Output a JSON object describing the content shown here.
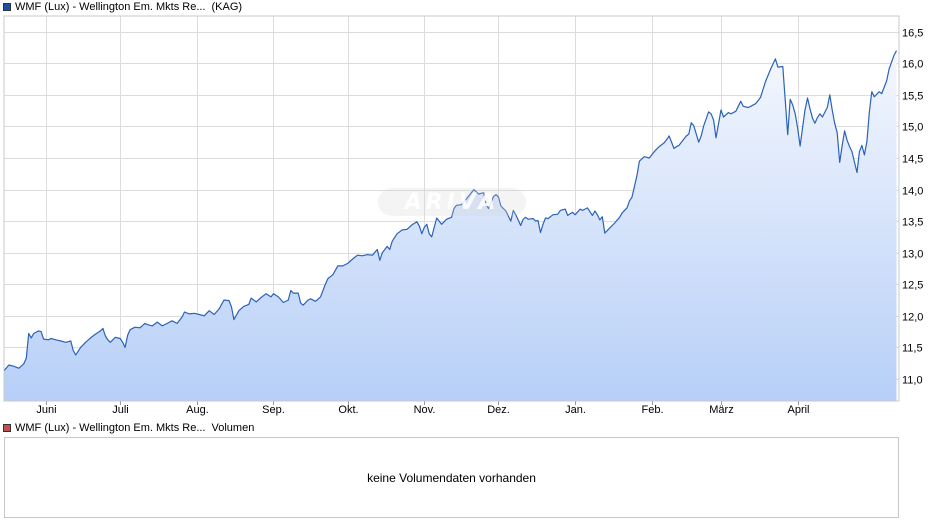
{
  "legend": {
    "price_name": "WMF (Lux) - Wellington Em. Mkts Re...",
    "price_suffix": "(KAG)",
    "price_color": "#1f4fa0",
    "volume_name": "WMF (Lux) - Wellington Em. Mkts Re...",
    "volume_suffix": "Volumen",
    "volume_color": "#c0504d"
  },
  "volume_panel": {
    "message": "keine Volumendaten vorhanden"
  },
  "watermark": {
    "text": "ARIVA"
  },
  "chart_data": {
    "type": "area",
    "line_color": "#2a62b8",
    "fill_color": "#b7cff7",
    "grid": true,
    "ylim": [
      10.65,
      16.75
    ],
    "y_ticks": [
      "11,0",
      "11,5",
      "12,0",
      "12,5",
      "13,0",
      "13,5",
      "14,0",
      "14,5",
      "15,0",
      "15,5",
      "16,0",
      "16,5"
    ],
    "y_tick_values": [
      11.0,
      11.5,
      12.0,
      12.5,
      13.0,
      13.5,
      14.0,
      14.5,
      15.0,
      15.5,
      16.0,
      16.5
    ],
    "x_month_labels": [
      "Juni",
      "Juli",
      "Aug.",
      "Sep.",
      "Okt.",
      "Nov.",
      "Dez.",
      "Jan.",
      "Feb.",
      "März",
      "April"
    ],
    "x_month_days": [
      17,
      47,
      78,
      109,
      139,
      170,
      200,
      231,
      262,
      290,
      321
    ],
    "x_range_days": [
      0,
      362
    ],
    "series": [
      {
        "points": [
          [
            0,
            11.13
          ],
          [
            2,
            11.22
          ],
          [
            4,
            11.2
          ],
          [
            6,
            11.17
          ],
          [
            8,
            11.24
          ],
          [
            9,
            11.33
          ],
          [
            10,
            11.72
          ],
          [
            11,
            11.65
          ],
          [
            12,
            11.72
          ],
          [
            14,
            11.76
          ],
          [
            15,
            11.75
          ],
          [
            16,
            11.63
          ],
          [
            18,
            11.62
          ],
          [
            19,
            11.64
          ],
          [
            21,
            11.62
          ],
          [
            23,
            11.6
          ],
          [
            25,
            11.58
          ],
          [
            27,
            11.6
          ],
          [
            28,
            11.45
          ],
          [
            29,
            11.38
          ],
          [
            31,
            11.5
          ],
          [
            33,
            11.58
          ],
          [
            35,
            11.65
          ],
          [
            37,
            11.71
          ],
          [
            39,
            11.76
          ],
          [
            40,
            11.8
          ],
          [
            41,
            11.68
          ],
          [
            42,
            11.62
          ],
          [
            43,
            11.58
          ],
          [
            45,
            11.66
          ],
          [
            47,
            11.64
          ],
          [
            48,
            11.58
          ],
          [
            49,
            11.5
          ],
          [
            50,
            11.69
          ],
          [
            51,
            11.78
          ],
          [
            53,
            11.82
          ],
          [
            55,
            11.81
          ],
          [
            57,
            11.88
          ],
          [
            58,
            11.86
          ],
          [
            60,
            11.84
          ],
          [
            62,
            11.9
          ],
          [
            64,
            11.84
          ],
          [
            66,
            11.88
          ],
          [
            68,
            11.92
          ],
          [
            70,
            11.88
          ],
          [
            72,
            11.98
          ],
          [
            73,
            12.06
          ],
          [
            75,
            12.03
          ],
          [
            77,
            12.04
          ],
          [
            79,
            12.02
          ],
          [
            81,
            12.0
          ],
          [
            83,
            12.08
          ],
          [
            85,
            12.02
          ],
          [
            87,
            12.11
          ],
          [
            89,
            12.25
          ],
          [
            91,
            12.24
          ],
          [
            92,
            12.14
          ],
          [
            93,
            11.94
          ],
          [
            95,
            12.08
          ],
          [
            97,
            12.15
          ],
          [
            99,
            12.18
          ],
          [
            100,
            12.28
          ],
          [
            102,
            12.22
          ],
          [
            104,
            12.29
          ],
          [
            106,
            12.35
          ],
          [
            108,
            12.3
          ],
          [
            109,
            12.35
          ],
          [
            111,
            12.3
          ],
          [
            113,
            12.21
          ],
          [
            115,
            12.25
          ],
          [
            116,
            12.4
          ],
          [
            117,
            12.36
          ],
          [
            119,
            12.36
          ],
          [
            120,
            12.2
          ],
          [
            121,
            12.17
          ],
          [
            123,
            12.25
          ],
          [
            124,
            12.27
          ],
          [
            126,
            12.23
          ],
          [
            128,
            12.3
          ],
          [
            130,
            12.5
          ],
          [
            131,
            12.59
          ],
          [
            133,
            12.65
          ],
          [
            135,
            12.79
          ],
          [
            137,
            12.79
          ],
          [
            139,
            12.83
          ],
          [
            141,
            12.9
          ],
          [
            143,
            12.96
          ],
          [
            145,
            12.95
          ],
          [
            147,
            12.97
          ],
          [
            149,
            12.96
          ],
          [
            151,
            13.05
          ],
          [
            152,
            12.88
          ],
          [
            153,
            13.0
          ],
          [
            155,
            13.1
          ],
          [
            156,
            13.05
          ],
          [
            157,
            13.18
          ],
          [
            159,
            13.3
          ],
          [
            161,
            13.36
          ],
          [
            163,
            13.37
          ],
          [
            165,
            13.44
          ],
          [
            167,
            13.49
          ],
          [
            168,
            13.42
          ],
          [
            169,
            13.3
          ],
          [
            170,
            13.4
          ],
          [
            171,
            13.45
          ],
          [
            172,
            13.3
          ],
          [
            173,
            13.25
          ],
          [
            175,
            13.55
          ],
          [
            177,
            13.45
          ],
          [
            179,
            13.53
          ],
          [
            181,
            13.56
          ],
          [
            182,
            13.7
          ],
          [
            183,
            13.75
          ],
          [
            185,
            13.76
          ],
          [
            187,
            13.85
          ],
          [
            188,
            13.9
          ],
          [
            190,
            14.0
          ],
          [
            192,
            13.93
          ],
          [
            194,
            13.95
          ],
          [
            195,
            13.76
          ],
          [
            196,
            13.7
          ],
          [
            198,
            13.89
          ],
          [
            199,
            13.92
          ],
          [
            200,
            13.88
          ],
          [
            201,
            13.74
          ],
          [
            203,
            13.66
          ],
          [
            205,
            13.5
          ],
          [
            206,
            13.67
          ],
          [
            207,
            13.6
          ],
          [
            209,
            13.43
          ],
          [
            210,
            13.53
          ],
          [
            211,
            13.56
          ],
          [
            212,
            13.53
          ],
          [
            214,
            13.54
          ],
          [
            215,
            13.5
          ],
          [
            216,
            13.51
          ],
          [
            217,
            13.32
          ],
          [
            218,
            13.45
          ],
          [
            219,
            13.55
          ],
          [
            220,
            13.54
          ],
          [
            222,
            13.6
          ],
          [
            224,
            13.61
          ],
          [
            225,
            13.67
          ],
          [
            227,
            13.69
          ],
          [
            228,
            13.59
          ],
          [
            230,
            13.64
          ],
          [
            231,
            13.6
          ],
          [
            233,
            13.69
          ],
          [
            234,
            13.67
          ],
          [
            236,
            13.71
          ],
          [
            238,
            13.59
          ],
          [
            239,
            13.66
          ],
          [
            240,
            13.6
          ],
          [
            241,
            13.52
          ],
          [
            242,
            13.57
          ],
          [
            243,
            13.31
          ],
          [
            245,
            13.39
          ],
          [
            247,
            13.47
          ],
          [
            249,
            13.56
          ],
          [
            250,
            13.63
          ],
          [
            252,
            13.71
          ],
          [
            253,
            13.82
          ],
          [
            254,
            13.88
          ],
          [
            256,
            14.22
          ],
          [
            257,
            14.45
          ],
          [
            259,
            14.52
          ],
          [
            261,
            14.5
          ],
          [
            263,
            14.6
          ],
          [
            265,
            14.68
          ],
          [
            267,
            14.74
          ],
          [
            268,
            14.79
          ],
          [
            269,
            14.85
          ],
          [
            271,
            14.65
          ],
          [
            272,
            14.68
          ],
          [
            273,
            14.7
          ],
          [
            274,
            14.75
          ],
          [
            276,
            14.85
          ],
          [
            277,
            14.88
          ],
          [
            278,
            15.06
          ],
          [
            279,
            15.01
          ],
          [
            281,
            14.75
          ],
          [
            282,
            14.85
          ],
          [
            283,
            15.01
          ],
          [
            285,
            15.23
          ],
          [
            286,
            15.2
          ],
          [
            287,
            15.1
          ],
          [
            288,
            14.82
          ],
          [
            290,
            15.26
          ],
          [
            291,
            15.15
          ],
          [
            293,
            15.22
          ],
          [
            294,
            15.2
          ],
          [
            296,
            15.24
          ],
          [
            298,
            15.4
          ],
          [
            299,
            15.32
          ],
          [
            301,
            15.3
          ],
          [
            302,
            15.32
          ],
          [
            304,
            15.36
          ],
          [
            305,
            15.41
          ],
          [
            306,
            15.46
          ],
          [
            308,
            15.71
          ],
          [
            310,
            15.9
          ],
          [
            312,
            16.07
          ],
          [
            313,
            15.94
          ],
          [
            315,
            15.95
          ],
          [
            316,
            15.4
          ],
          [
            317,
            14.87
          ],
          [
            318,
            15.43
          ],
          [
            319,
            15.34
          ],
          [
            320,
            15.2
          ],
          [
            321,
            14.98
          ],
          [
            322,
            14.69
          ],
          [
            324,
            15.26
          ],
          [
            325,
            15.45
          ],
          [
            326,
            15.28
          ],
          [
            327,
            15.13
          ],
          [
            328,
            15.05
          ],
          [
            329,
            15.14
          ],
          [
            330,
            15.2
          ],
          [
            331,
            15.15
          ],
          [
            333,
            15.3
          ],
          [
            334,
            15.5
          ],
          [
            335,
            15.26
          ],
          [
            336,
            15.05
          ],
          [
            337,
            14.9
          ],
          [
            338,
            14.43
          ],
          [
            339,
            14.69
          ],
          [
            340,
            14.93
          ],
          [
            341,
            14.78
          ],
          [
            342,
            14.68
          ],
          [
            343,
            14.6
          ],
          [
            344,
            14.43
          ],
          [
            345,
            14.27
          ],
          [
            346,
            14.6
          ],
          [
            347,
            14.7
          ],
          [
            348,
            14.55
          ],
          [
            349,
            14.76
          ],
          [
            350,
            15.22
          ],
          [
            351,
            15.55
          ],
          [
            352,
            15.47
          ],
          [
            354,
            15.55
          ],
          [
            355,
            15.52
          ],
          [
            357,
            15.72
          ],
          [
            358,
            15.91
          ],
          [
            360,
            16.13
          ],
          [
            361,
            16.2
          ]
        ]
      }
    ]
  }
}
